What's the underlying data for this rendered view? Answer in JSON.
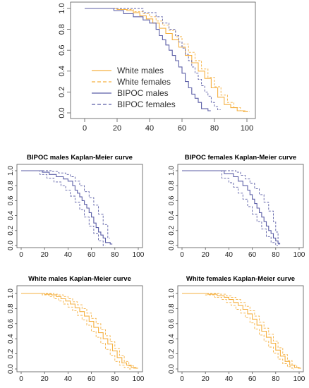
{
  "chart_data": [
    {
      "type": "line",
      "step": true,
      "title": "",
      "xlabel": "",
      "ylabel": "",
      "xlim": [
        0,
        100
      ],
      "ylim": [
        0,
        1.0
      ],
      "x_ticks": [
        0,
        20,
        40,
        60,
        80,
        100
      ],
      "y_ticks": [
        0.0,
        0.2,
        0.4,
        0.6,
        0.8,
        1.0
      ],
      "y_tick_labels": [
        "0.0",
        "0.2",
        "0.4",
        "0.6",
        "0.8",
        "1.0"
      ],
      "grid": false,
      "legend": "bottom-left",
      "series": [
        {
          "name": "White males",
          "color": "#f5b041",
          "dash": "solid",
          "x": [
            0,
            20,
            26,
            30,
            34,
            38,
            42,
            46,
            50,
            54,
            58,
            62,
            66,
            70,
            74,
            78,
            82,
            86,
            90,
            94,
            98
          ],
          "y": [
            1.0,
            0.99,
            0.98,
            0.96,
            0.93,
            0.9,
            0.86,
            0.81,
            0.76,
            0.7,
            0.63,
            0.55,
            0.48,
            0.4,
            0.33,
            0.24,
            0.15,
            0.08,
            0.05,
            0.02,
            0.01
          ]
        },
        {
          "name": "White females",
          "color": "#f5b041",
          "dash": "dashed",
          "x": [
            0,
            22,
            30,
            36,
            40,
            44,
            48,
            52,
            56,
            60,
            64,
            68,
            72,
            76,
            80,
            84,
            88,
            92,
            96,
            100
          ],
          "y": [
            1.0,
            0.99,
            0.97,
            0.95,
            0.92,
            0.88,
            0.84,
            0.79,
            0.73,
            0.66,
            0.58,
            0.5,
            0.42,
            0.34,
            0.25,
            0.17,
            0.1,
            0.05,
            0.02,
            0.01
          ]
        },
        {
          "name": "BIPOC males",
          "color": "#5b5ea6",
          "dash": "solid",
          "x": [
            0,
            18,
            24,
            30,
            36,
            40,
            44,
            46,
            48,
            50,
            52,
            54,
            56,
            58,
            60,
            62,
            64,
            66,
            68,
            70,
            72,
            76
          ],
          "y": [
            1.0,
            0.98,
            0.95,
            0.92,
            0.89,
            0.86,
            0.8,
            0.74,
            0.7,
            0.65,
            0.6,
            0.55,
            0.5,
            0.44,
            0.38,
            0.3,
            0.24,
            0.18,
            0.14,
            0.1,
            0.04,
            0.02
          ]
        },
        {
          "name": "BIPOC females",
          "color": "#5b5ea6",
          "dash": "dashed",
          "x": [
            0,
            36,
            44,
            48,
            52,
            56,
            58,
            60,
            62,
            64,
            66,
            68,
            70,
            72,
            74,
            76,
            78,
            80,
            82
          ],
          "y": [
            1.0,
            0.96,
            0.92,
            0.86,
            0.8,
            0.74,
            0.68,
            0.62,
            0.56,
            0.5,
            0.44,
            0.38,
            0.32,
            0.26,
            0.2,
            0.16,
            0.1,
            0.06,
            0.03
          ]
        }
      ]
    },
    {
      "type": "line",
      "step": true,
      "title": "BIPOC males Kaplan-Meier curve",
      "xlim": [
        0,
        100
      ],
      "ylim": [
        0,
        1.0
      ],
      "x_ticks": [
        0,
        20,
        40,
        60,
        80,
        100
      ],
      "y_ticks": [
        0.0,
        0.2,
        0.4,
        0.6,
        0.8,
        1.0
      ],
      "y_tick_labels": [
        "0.0",
        "0.2",
        "0.4",
        "0.6",
        "0.8",
        "1.0"
      ],
      "grid": false,
      "series": [
        {
          "name": "",
          "role": "estimate",
          "color": "#5b5ea6",
          "dash": "solid",
          "x": [
            0,
            18,
            24,
            30,
            36,
            40,
            44,
            46,
            48,
            50,
            52,
            54,
            56,
            58,
            60,
            62,
            64,
            66,
            68,
            70,
            72,
            76
          ],
          "y": [
            1.0,
            0.98,
            0.95,
            0.92,
            0.89,
            0.86,
            0.8,
            0.74,
            0.7,
            0.65,
            0.6,
            0.55,
            0.5,
            0.44,
            0.38,
            0.3,
            0.24,
            0.18,
            0.14,
            0.1,
            0.04,
            0.02
          ]
        },
        {
          "name": "",
          "role": "upper",
          "color": "#5b5ea6",
          "dash": "dashed",
          "x": [
            0,
            20,
            26,
            32,
            38,
            42,
            46,
            50,
            54,
            58,
            62,
            66,
            70,
            74
          ],
          "y": [
            1.0,
            1.0,
            0.99,
            0.97,
            0.95,
            0.92,
            0.86,
            0.8,
            0.72,
            0.64,
            0.54,
            0.42,
            0.28,
            0.1
          ]
        },
        {
          "name": "",
          "role": "lower",
          "color": "#5b5ea6",
          "dash": "dashed",
          "x": [
            0,
            16,
            22,
            28,
            34,
            38,
            42,
            46,
            50,
            54,
            58,
            62,
            66,
            70
          ],
          "y": [
            1.0,
            0.95,
            0.9,
            0.85,
            0.8,
            0.74,
            0.66,
            0.58,
            0.48,
            0.38,
            0.26,
            0.16,
            0.06,
            0.0
          ]
        }
      ]
    },
    {
      "type": "line",
      "step": true,
      "title": "BIPOC females Kaplan-Meier curve",
      "xlim": [
        0,
        100
      ],
      "ylim": [
        0,
        1.0
      ],
      "x_ticks": [
        0,
        20,
        40,
        60,
        80,
        100
      ],
      "y_ticks": [
        0.0,
        0.2,
        0.4,
        0.6,
        0.8,
        1.0
      ],
      "y_tick_labels": [
        "0.0",
        "0.2",
        "0.4",
        "0.6",
        "0.8",
        "1.0"
      ],
      "grid": false,
      "series": [
        {
          "name": "",
          "role": "estimate",
          "color": "#5b5ea6",
          "dash": "solid",
          "x": [
            0,
            36,
            44,
            48,
            52,
            56,
            58,
            60,
            62,
            64,
            66,
            68,
            70,
            72,
            74,
            76,
            78,
            80,
            82
          ],
          "y": [
            1.0,
            0.96,
            0.92,
            0.86,
            0.8,
            0.74,
            0.68,
            0.62,
            0.56,
            0.5,
            0.44,
            0.38,
            0.32,
            0.26,
            0.2,
            0.16,
            0.1,
            0.06,
            0.03
          ]
        },
        {
          "name": "",
          "role": "upper",
          "color": "#5b5ea6",
          "dash": "dashed",
          "x": [
            0,
            40,
            46,
            50,
            54,
            58,
            62,
            66,
            70,
            74,
            78,
            80,
            82
          ],
          "y": [
            1.0,
            1.0,
            0.98,
            0.94,
            0.89,
            0.83,
            0.76,
            0.68,
            0.58,
            0.46,
            0.32,
            0.18,
            0.02
          ]
        },
        {
          "name": "",
          "role": "lower",
          "color": "#5b5ea6",
          "dash": "dashed",
          "x": [
            0,
            34,
            40,
            44,
            48,
            52,
            56,
            60,
            64,
            68,
            72,
            76,
            80
          ],
          "y": [
            1.0,
            0.9,
            0.84,
            0.78,
            0.7,
            0.62,
            0.52,
            0.42,
            0.32,
            0.22,
            0.12,
            0.04,
            0.0
          ]
        }
      ]
    },
    {
      "type": "line",
      "step": true,
      "title": "White males Kaplan-Meier curve",
      "xlim": [
        0,
        100
      ],
      "ylim": [
        0,
        1.0
      ],
      "x_ticks": [
        0,
        20,
        40,
        60,
        80,
        100
      ],
      "y_ticks": [
        0.0,
        0.2,
        0.4,
        0.6,
        0.8,
        1.0
      ],
      "y_tick_labels": [
        "0.0",
        "0.2",
        "0.4",
        "0.6",
        "0.8",
        "1.0"
      ],
      "grid": false,
      "series": [
        {
          "name": "",
          "role": "estimate",
          "color": "#f5b041",
          "dash": "solid",
          "x": [
            0,
            20,
            26,
            30,
            34,
            38,
            42,
            46,
            50,
            54,
            58,
            62,
            66,
            70,
            74,
            78,
            82,
            86,
            90,
            94,
            98
          ],
          "y": [
            1.0,
            0.99,
            0.98,
            0.96,
            0.93,
            0.9,
            0.86,
            0.81,
            0.76,
            0.7,
            0.63,
            0.55,
            0.48,
            0.4,
            0.33,
            0.24,
            0.15,
            0.08,
            0.05,
            0.02,
            0.01
          ]
        },
        {
          "name": "",
          "role": "upper",
          "color": "#f5b041",
          "dash": "dashed",
          "x": [
            0,
            22,
            28,
            32,
            36,
            40,
            44,
            48,
            52,
            56,
            60,
            64,
            68,
            72,
            76,
            80,
            84,
            88,
            92,
            96
          ],
          "y": [
            1.0,
            1.0,
            0.99,
            0.98,
            0.96,
            0.93,
            0.89,
            0.85,
            0.8,
            0.74,
            0.67,
            0.6,
            0.52,
            0.44,
            0.36,
            0.27,
            0.18,
            0.1,
            0.04,
            0.01
          ]
        },
        {
          "name": "",
          "role": "lower",
          "color": "#f5b041",
          "dash": "dashed",
          "x": [
            0,
            18,
            24,
            28,
            32,
            36,
            40,
            44,
            48,
            52,
            56,
            60,
            64,
            68,
            72,
            76,
            80,
            84,
            88,
            92
          ],
          "y": [
            1.0,
            0.98,
            0.96,
            0.93,
            0.9,
            0.86,
            0.82,
            0.77,
            0.71,
            0.65,
            0.58,
            0.5,
            0.42,
            0.34,
            0.26,
            0.18,
            0.1,
            0.05,
            0.02,
            0.0
          ]
        }
      ]
    },
    {
      "type": "line",
      "step": true,
      "title": "White females Kaplan-Meier curve",
      "xlim": [
        0,
        100
      ],
      "ylim": [
        0,
        1.0
      ],
      "x_ticks": [
        0,
        20,
        40,
        60,
        80,
        100
      ],
      "y_ticks": [
        0.0,
        0.2,
        0.4,
        0.6,
        0.8,
        1.0
      ],
      "y_tick_labels": [
        "0.0",
        "0.2",
        "0.4",
        "0.6",
        "0.8",
        "1.0"
      ],
      "grid": false,
      "series": [
        {
          "name": "",
          "role": "estimate",
          "color": "#f5b041",
          "dash": "solid",
          "x": [
            0,
            22,
            30,
            36,
            40,
            44,
            48,
            52,
            56,
            60,
            64,
            68,
            72,
            76,
            80,
            84,
            88,
            92,
            96,
            100
          ],
          "y": [
            1.0,
            0.99,
            0.97,
            0.95,
            0.92,
            0.88,
            0.84,
            0.79,
            0.73,
            0.66,
            0.58,
            0.5,
            0.42,
            0.34,
            0.25,
            0.17,
            0.1,
            0.05,
            0.02,
            0.01
          ]
        },
        {
          "name": "",
          "role": "upper",
          "color": "#f5b041",
          "dash": "dashed",
          "x": [
            0,
            24,
            32,
            38,
            42,
            46,
            50,
            54,
            58,
            62,
            66,
            70,
            74,
            78,
            82,
            86,
            90,
            94,
            98
          ],
          "y": [
            1.0,
            1.0,
            0.99,
            0.97,
            0.95,
            0.92,
            0.88,
            0.83,
            0.77,
            0.7,
            0.62,
            0.54,
            0.46,
            0.37,
            0.28,
            0.19,
            0.11,
            0.05,
            0.01
          ]
        },
        {
          "name": "",
          "role": "lower",
          "color": "#f5b041",
          "dash": "dashed",
          "x": [
            0,
            20,
            28,
            34,
            38,
            42,
            46,
            50,
            54,
            58,
            62,
            66,
            70,
            74,
            78,
            82,
            86,
            90,
            94
          ],
          "y": [
            1.0,
            0.98,
            0.95,
            0.92,
            0.88,
            0.84,
            0.79,
            0.74,
            0.68,
            0.61,
            0.53,
            0.45,
            0.37,
            0.29,
            0.21,
            0.13,
            0.07,
            0.03,
            0.0
          ]
        }
      ]
    }
  ]
}
